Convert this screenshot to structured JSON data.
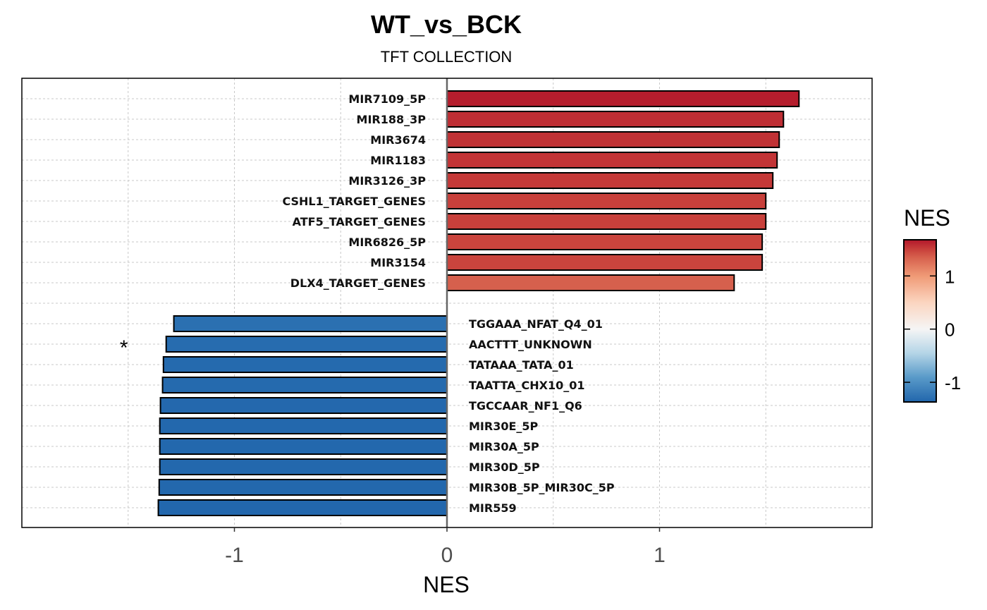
{
  "chart_data": {
    "type": "bar",
    "orientation": "horizontal",
    "title": "WT_vs_BCK",
    "subtitle": "TFT COLLECTION",
    "xlabel": "NES",
    "ylabel": "",
    "xlim": [
      -2.0,
      2.0
    ],
    "xticks": [
      -1,
      0,
      1
    ],
    "xtick_labels": [
      "-1",
      "0",
      "1"
    ],
    "grid": true,
    "categories_up": [
      "MIR7109_5P",
      "MIR188_3P",
      "MIR3674",
      "MIR1183",
      "MIR3126_3P",
      "CSHL1_TARGET_GENES",
      "ATF5_TARGET_GENES",
      "MIR6826_5P",
      "MIR3154",
      "DLX4_TARGET_GENES"
    ],
    "values_up": [
      1.656,
      1.583,
      1.563,
      1.553,
      1.533,
      1.5,
      1.5,
      1.483,
      1.483,
      1.351
    ],
    "categories_down": [
      "TGGAAA_NFAT_Q4_01",
      "AACTTT_UNKNOWN",
      "TATAAA_TATA_01",
      "TAATTA_CHX10_01",
      "TGCCAAR_NF1_Q6",
      "MIR30E_5P",
      "MIR30A_5P",
      "MIR30D_5P",
      "MIR30B_5P_MIR30C_5P",
      "MIR559"
    ],
    "values_down": [
      -1.285,
      -1.321,
      -1.334,
      -1.338,
      -1.348,
      -1.351,
      -1.351,
      -1.351,
      -1.354,
      -1.358
    ],
    "significance_marks": [
      {
        "category": "AACTTT_UNKNOWN",
        "label": "*"
      }
    ],
    "legend": {
      "title": "NES",
      "placement": "right",
      "range": [
        -1.37,
        1.68
      ],
      "ticks": [
        1,
        0,
        -1
      ],
      "tick_labels": [
        "1",
        "0",
        "-1"
      ],
      "color_stops": [
        {
          "value": -1.37,
          "color": "#2166ac"
        },
        {
          "value": -0.9,
          "color": "#5a9bc9"
        },
        {
          "value": -0.45,
          "color": "#b5d5e7"
        },
        {
          "value": 0,
          "color": "#f5f5f5"
        },
        {
          "value": 0.5,
          "color": "#fbd5c0"
        },
        {
          "value": 1.0,
          "color": "#f09a76"
        },
        {
          "value": 1.35,
          "color": "#d6604d"
        },
        {
          "value": 1.5,
          "color": "#c8403b"
        },
        {
          "value": 1.68,
          "color": "#b2182b"
        }
      ]
    }
  }
}
